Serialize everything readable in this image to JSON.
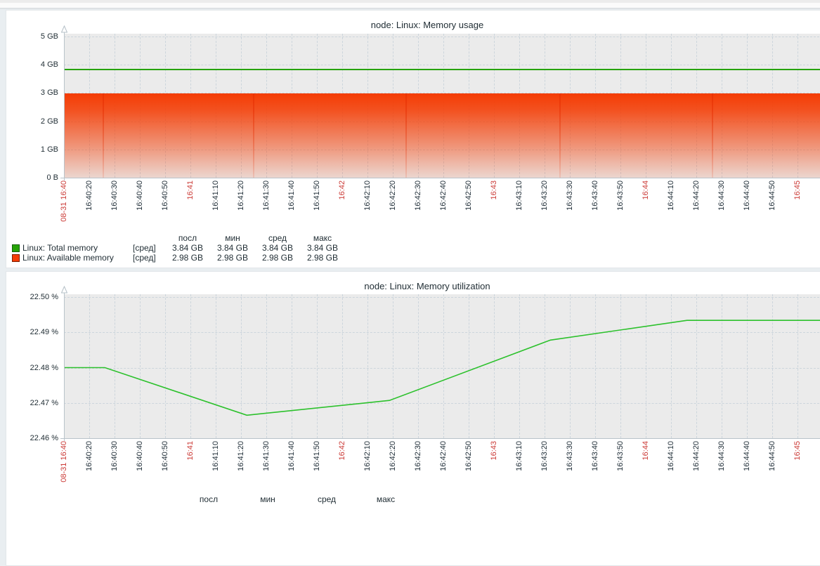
{
  "x_ticks": [
    {
      "label": "08-31 16:40",
      "emphasis": true
    },
    {
      "label": "16:40:20",
      "emphasis": false
    },
    {
      "label": "16:40:30",
      "emphasis": false
    },
    {
      "label": "16:40:40",
      "emphasis": false
    },
    {
      "label": "16:40:50",
      "emphasis": false
    },
    {
      "label": "16:41",
      "emphasis": true
    },
    {
      "label": "16:41:10",
      "emphasis": false
    },
    {
      "label": "16:41:20",
      "emphasis": false
    },
    {
      "label": "16:41:30",
      "emphasis": false
    },
    {
      "label": "16:41:40",
      "emphasis": false
    },
    {
      "label": "16:41:50",
      "emphasis": false
    },
    {
      "label": "16:42",
      "emphasis": true
    },
    {
      "label": "16:42:10",
      "emphasis": false
    },
    {
      "label": "16:42:20",
      "emphasis": false
    },
    {
      "label": "16:42:30",
      "emphasis": false
    },
    {
      "label": "16:42:40",
      "emphasis": false
    },
    {
      "label": "16:42:50",
      "emphasis": false
    },
    {
      "label": "16:43",
      "emphasis": true
    },
    {
      "label": "16:43:10",
      "emphasis": false
    },
    {
      "label": "16:43:20",
      "emphasis": false
    },
    {
      "label": "16:43:30",
      "emphasis": false
    },
    {
      "label": "16:43:40",
      "emphasis": false
    },
    {
      "label": "16:43:50",
      "emphasis": false
    },
    {
      "label": "16:44",
      "emphasis": true
    },
    {
      "label": "16:44:10",
      "emphasis": false
    },
    {
      "label": "16:44:20",
      "emphasis": false
    },
    {
      "label": "16:44:30",
      "emphasis": false
    },
    {
      "label": "16:44:40",
      "emphasis": false
    },
    {
      "label": "16:44:50",
      "emphasis": false
    },
    {
      "label": "16:45",
      "emphasis": true
    }
  ],
  "charts": [
    {
      "title": "node: Linux: Memory usage",
      "y_ticks": [
        "5 GB",
        "4 GB",
        "3 GB",
        "2 GB",
        "1 GB",
        "0 B"
      ],
      "legend_headers": [
        "посл",
        "мин",
        "сред",
        "макс"
      ],
      "legend_rows": [
        {
          "color": "#26a306",
          "border": "#15610a",
          "label": "Linux: Total memory",
          "func": "[сред]",
          "values": [
            "3.84 GB",
            "3.84 GB",
            "3.84 GB",
            "3.84 GB"
          ]
        },
        {
          "color": "#f43c04",
          "border": "#7c1e02",
          "label": "Linux: Available memory",
          "func": "[сред]",
          "values": [
            "2.98 GB",
            "2.98 GB",
            "2.98 GB",
            "2.98 GB"
          ]
        }
      ],
      "chart_data": {
        "type": "line+area",
        "x_range": [
          "08-31 16:40",
          "16:45"
        ],
        "ymin": 0,
        "ymax": 5,
        "y_unit": "GB",
        "grid": true,
        "series": [
          {
            "name": "Linux: Total memory",
            "style": "line",
            "color": "#26a306",
            "constant_value": 3.84
          },
          {
            "name": "Linux: Available memory",
            "style": "gradient-area",
            "color": "#f43c04",
            "constant_value": 2.98,
            "gradient_seams_fx": [
              0.051,
              0.249,
              0.45,
              0.653,
              0.854
            ]
          }
        ]
      }
    },
    {
      "title": "node: Linux: Memory utilization",
      "y_ticks": [
        "22.50 %",
        "22.49 %",
        "22.48 %",
        "22.47 %",
        "22.46 %"
      ],
      "legend_headers": [
        "посл",
        "мин",
        "сред",
        "макс"
      ],
      "legend_rows": [],
      "chart_data": {
        "type": "line",
        "x_range": [
          "08-31 16:40",
          "16:45"
        ],
        "ymin": 22.46,
        "ymax": 22.5,
        "y_unit": "%",
        "grid": true,
        "series": [
          {
            "name": "Linux: Memory utilization",
            "style": "line",
            "color": "#2cc12c",
            "points": [
              {
                "t": "16:40:10",
                "fx": 0.0,
                "v": 22.48
              },
              {
                "t": "16:40:26",
                "fx": 0.054,
                "v": 22.48
              },
              {
                "t": "16:41:22",
                "fx": 0.241,
                "v": 22.4665
              },
              {
                "t": "16:42:19",
                "fx": 0.429,
                "v": 22.4707
              },
              {
                "t": "16:43:22",
                "fx": 0.641,
                "v": 22.4878
              },
              {
                "t": "16:44:16",
                "fx": 0.821,
                "v": 22.4934
              },
              {
                "t": "16:45:10",
                "fx": 1.0,
                "v": 22.4934
              }
            ]
          }
        ]
      }
    }
  ]
}
